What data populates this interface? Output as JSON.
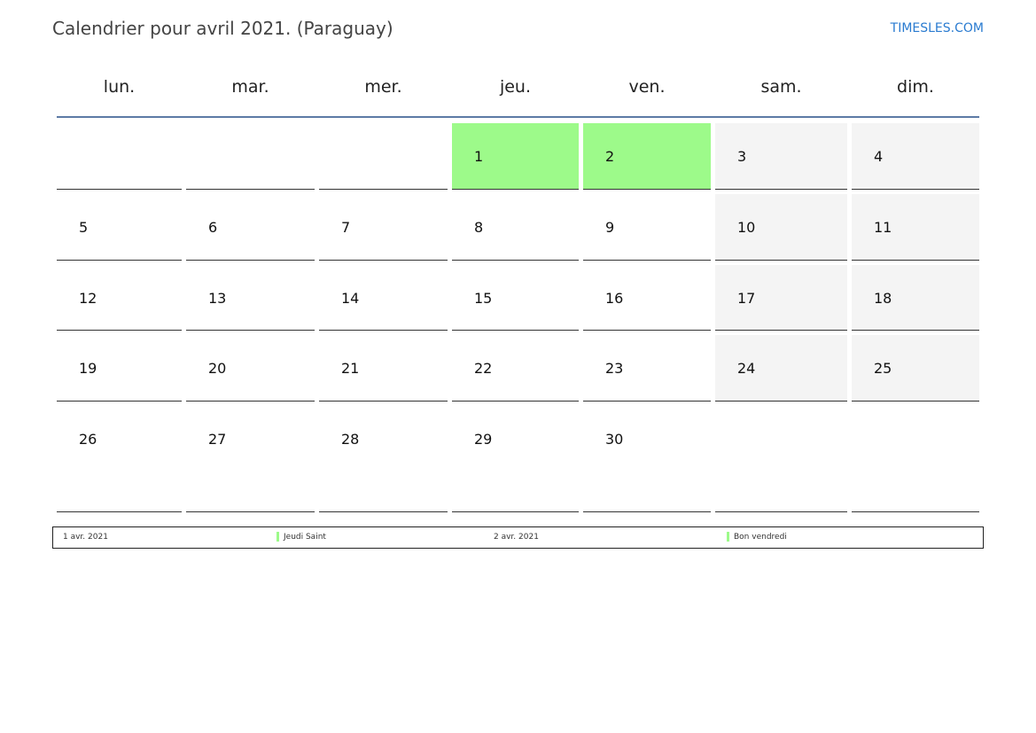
{
  "header": {
    "title": "Calendrier pour avril 2021. (Paraguay)",
    "brand": "TIMESLES.COM"
  },
  "weekdays": [
    "lun.",
    "mar.",
    "mer.",
    "jeu.",
    "ven.",
    "sam.",
    "dim."
  ],
  "weeks": [
    [
      "",
      "",
      "",
      "1",
      "2",
      "3",
      "4"
    ],
    [
      "5",
      "6",
      "7",
      "8",
      "9",
      "10",
      "11"
    ],
    [
      "12",
      "13",
      "14",
      "15",
      "16",
      "17",
      "18"
    ],
    [
      "19",
      "20",
      "21",
      "22",
      "23",
      "24",
      "25"
    ],
    [
      "26",
      "27",
      "28",
      "29",
      "30",
      "",
      ""
    ]
  ],
  "holidays": [
    "1",
    "2"
  ],
  "colors": {
    "holiday": "#9dfa8a",
    "weekend": "#f4f4f4",
    "accent": "#5d7aa5"
  },
  "legend": [
    {
      "date": "1 avr. 2021",
      "name": "Jeudi Saint"
    },
    {
      "date": "2 avr. 2021",
      "name": "Bon vendredi"
    }
  ]
}
